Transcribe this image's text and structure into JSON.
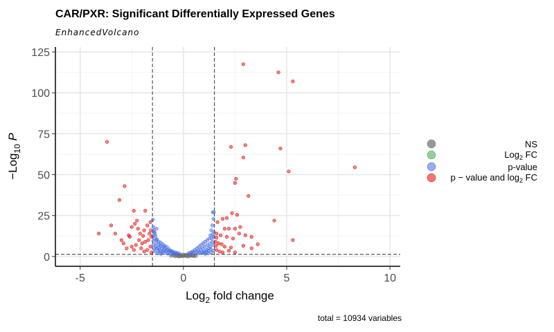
{
  "chart_data": {
    "type": "scatter",
    "title": "CAR/PXR: Significant Differentially Expressed Genes",
    "subtitle": "EnhancedVolcano",
    "xlabel": "Log2 fold change",
    "ylabel": "-Log10 P",
    "caption": "total = 10934 variables",
    "xlim": [
      -6.2,
      10.5
    ],
    "ylim": [
      -6,
      128
    ],
    "x_ticks": [
      -5,
      0,
      5,
      10
    ],
    "x_tick_labels": [
      "-5",
      "0",
      "5",
      "10"
    ],
    "y_ticks": [
      0,
      25,
      50,
      75,
      100,
      125
    ],
    "y_tick_labels": [
      "0",
      "25",
      "50",
      "75",
      "100",
      "125"
    ],
    "grid": true,
    "cutoffs": {
      "log2fc": [
        -1.5,
        1.5
      ],
      "neg_log10_p": 1.3
    },
    "legend": {
      "position": "right",
      "entries": [
        "NS",
        "Log2 FC",
        "p-value",
        "p-value and log2 FC"
      ],
      "colors": [
        "#808080",
        "#4caf50",
        "#4169e1",
        "#ff0000"
      ]
    },
    "series": [
      {
        "name": "NS",
        "color": "#808080",
        "points": [
          [
            -0.6,
            0.4
          ],
          [
            -0.5,
            0.9
          ],
          [
            -0.4,
            0.2
          ],
          [
            -0.35,
            1.1
          ],
          [
            -0.3,
            0.6
          ],
          [
            -0.25,
            0.1
          ],
          [
            -0.2,
            0.8
          ],
          [
            -0.15,
            0.3
          ],
          [
            -0.1,
            1.0
          ],
          [
            -0.05,
            0.5
          ],
          [
            0,
            0.2
          ],
          [
            0.05,
            0.9
          ],
          [
            0.1,
            0.4
          ],
          [
            0.15,
            1.1
          ],
          [
            0.2,
            0.1
          ],
          [
            0.25,
            0.7
          ],
          [
            0.3,
            0.3
          ],
          [
            0.35,
            1.0
          ],
          [
            0.4,
            0.5
          ],
          [
            0.5,
            0.2
          ],
          [
            0.55,
            0.8
          ],
          [
            0.6,
            0.3
          ],
          [
            -0.45,
            0.5
          ],
          [
            0.45,
            0.6
          ],
          [
            -0.1,
            0.2
          ],
          [
            0.1,
            0.8
          ],
          [
            0,
            1.2
          ],
          [
            -0.2,
            0.05
          ],
          [
            0.2,
            0.05
          ],
          [
            0.3,
            0.9
          ]
        ]
      },
      {
        "name": "p-value",
        "color": "#4169e1",
        "points": [
          [
            -1.48,
            22.5
          ],
          [
            -1.45,
            18
          ],
          [
            -1.4,
            15
          ],
          [
            -1.35,
            12.5
          ],
          [
            -1.3,
            10
          ],
          [
            -1.2,
            9
          ],
          [
            -1.1,
            8.5
          ],
          [
            -1.0,
            7.5
          ],
          [
            -0.9,
            6.5
          ],
          [
            -0.8,
            5.8
          ],
          [
            -0.7,
            4.5
          ],
          [
            -0.6,
            3.5
          ],
          [
            -0.5,
            3.0
          ],
          [
            -0.4,
            2.5
          ],
          [
            -0.3,
            2.2
          ],
          [
            -0.2,
            1.8
          ],
          [
            -1.45,
            7
          ],
          [
            -1.3,
            5
          ],
          [
            -1.15,
            4
          ],
          [
            -1.0,
            3
          ],
          [
            -0.9,
            2.2
          ],
          [
            -0.75,
            1.8
          ],
          [
            -0.6,
            1.5
          ],
          [
            -1.4,
            3
          ],
          [
            -1.25,
            2
          ],
          [
            -1.1,
            1.6
          ],
          [
            -1.35,
            6
          ],
          [
            -1.2,
            5.5
          ],
          [
            -1.05,
            5
          ],
          [
            -0.95,
            4
          ],
          [
            -0.85,
            3.2
          ],
          [
            -0.7,
            2.8
          ],
          [
            -1.46,
            9.5
          ],
          [
            -1.32,
            8
          ],
          [
            -1.18,
            7
          ],
          [
            -1.42,
            11
          ],
          [
            -1.28,
            10.5
          ],
          [
            -1.12,
            6.5
          ],
          [
            -0.98,
            6
          ],
          [
            -0.88,
            5
          ],
          [
            -0.78,
            4
          ],
          [
            -0.65,
            3.2
          ],
          [
            -0.55,
            2.6
          ],
          [
            -0.45,
            2
          ],
          [
            -0.35,
            1.6
          ],
          [
            -1.48,
            13
          ],
          [
            -1.38,
            14
          ],
          [
            -1.4,
            4.5
          ],
          [
            -1.22,
            3.5
          ],
          [
            -1.08,
            2.5
          ],
          [
            1.48,
            27
          ],
          [
            1.42,
            27
          ],
          [
            1.45,
            23
          ],
          [
            1.4,
            19
          ],
          [
            1.35,
            16
          ],
          [
            1.3,
            13
          ],
          [
            1.25,
            11
          ],
          [
            1.15,
            10
          ],
          [
            1.05,
            9
          ],
          [
            0.95,
            8
          ],
          [
            0.85,
            7
          ],
          [
            0.75,
            6
          ],
          [
            0.65,
            5
          ],
          [
            0.55,
            4
          ],
          [
            0.45,
            3.2
          ],
          [
            0.35,
            2.5
          ],
          [
            0.25,
            2
          ],
          [
            1.45,
            7
          ],
          [
            1.3,
            6
          ],
          [
            1.2,
            5
          ],
          [
            1.1,
            4
          ],
          [
            1.0,
            3.2
          ],
          [
            0.9,
            2.6
          ],
          [
            0.8,
            2.2
          ],
          [
            0.7,
            1.8
          ],
          [
            1.45,
            3.5
          ],
          [
            1.35,
            2.5
          ],
          [
            1.2,
            2
          ],
          [
            1.05,
            1.6
          ],
          [
            1.4,
            9
          ],
          [
            1.28,
            8
          ],
          [
            1.15,
            7
          ],
          [
            1.02,
            6
          ],
          [
            0.92,
            5
          ],
          [
            0.82,
            4.2
          ],
          [
            0.72,
            3.4
          ],
          [
            0.62,
            2.8
          ],
          [
            1.46,
            12
          ],
          [
            1.38,
            11
          ],
          [
            1.33,
            4.5
          ],
          [
            1.22,
            3.5
          ],
          [
            1.12,
            2.8
          ],
          [
            0.98,
            2.3
          ],
          [
            1.48,
            15
          ],
          [
            1.42,
            13.5
          ],
          [
            0.5,
            2.4
          ],
          [
            0.4,
            1.9
          ],
          [
            -1.3,
            17
          ],
          [
            -1.44,
            16
          ]
        ]
      },
      {
        "name": "p-value and log2 FC",
        "color": "#ff0000",
        "points": [
          [
            2.9,
            117.5
          ],
          [
            4.6,
            112.5
          ],
          [
            5.3,
            107
          ],
          [
            3.0,
            68
          ],
          [
            2.3,
            67
          ],
          [
            4.7,
            66
          ],
          [
            2.9,
            60.5
          ],
          [
            5.1,
            52
          ],
          [
            8.3,
            54.5
          ],
          [
            2.55,
            47.5
          ],
          [
            2.5,
            45
          ],
          [
            3.15,
            37
          ],
          [
            2.35,
            26.5
          ],
          [
            2.6,
            25.5
          ],
          [
            2.1,
            23.5
          ],
          [
            1.9,
            23
          ],
          [
            1.65,
            21
          ],
          [
            2.0,
            17
          ],
          [
            2.2,
            17
          ],
          [
            2.5,
            17
          ],
          [
            2.75,
            18
          ],
          [
            1.6,
            14
          ],
          [
            1.8,
            13
          ],
          [
            2.1,
            12
          ],
          [
            2.4,
            11
          ],
          [
            2.7,
            14
          ],
          [
            3.0,
            13
          ],
          [
            3.3,
            12
          ],
          [
            3.6,
            7.5
          ],
          [
            4.4,
            22
          ],
          [
            5.3,
            10
          ],
          [
            1.55,
            9
          ],
          [
            1.7,
            8
          ],
          [
            1.85,
            7.5
          ],
          [
            2.0,
            6
          ],
          [
            2.3,
            5.5
          ],
          [
            3.3,
            5
          ],
          [
            2.9,
            6.5
          ],
          [
            1.6,
            4
          ],
          [
            1.75,
            3
          ],
          [
            1.9,
            2.5
          ],
          [
            2.2,
            3.5
          ],
          [
            2.5,
            2.5
          ],
          [
            1.6,
            11.5
          ],
          [
            1.58,
            6.5
          ],
          [
            -3.7,
            70
          ],
          [
            -2.85,
            43
          ],
          [
            -3.1,
            34.5
          ],
          [
            -2.4,
            28
          ],
          [
            -1.85,
            28
          ],
          [
            -2.35,
            20
          ],
          [
            -2.5,
            18
          ],
          [
            -2.2,
            17
          ],
          [
            -2.1,
            14
          ],
          [
            -1.9,
            16
          ],
          [
            -1.75,
            19
          ],
          [
            -1.6,
            21
          ],
          [
            -1.55,
            12
          ],
          [
            -1.7,
            10
          ],
          [
            -1.85,
            9
          ],
          [
            -2.0,
            8
          ],
          [
            -2.15,
            10
          ],
          [
            -2.3,
            7
          ],
          [
            -2.5,
            6
          ],
          [
            -2.75,
            5
          ],
          [
            -3.0,
            10
          ],
          [
            -3.3,
            14
          ],
          [
            -3.5,
            19
          ],
          [
            -4.1,
            14
          ],
          [
            -2.65,
            13
          ],
          [
            -2.9,
            8
          ],
          [
            -1.6,
            6
          ],
          [
            -1.75,
            4
          ],
          [
            -1.9,
            3
          ],
          [
            -2.05,
            5
          ],
          [
            -1.55,
            2.5
          ],
          [
            -2.4,
            4
          ],
          [
            -2.6,
            12
          ],
          [
            -1.65,
            14
          ],
          [
            -2.25,
            22
          ],
          [
            -1.95,
            12.5
          ],
          [
            -1.58,
            16
          ]
        ]
      }
    ]
  }
}
